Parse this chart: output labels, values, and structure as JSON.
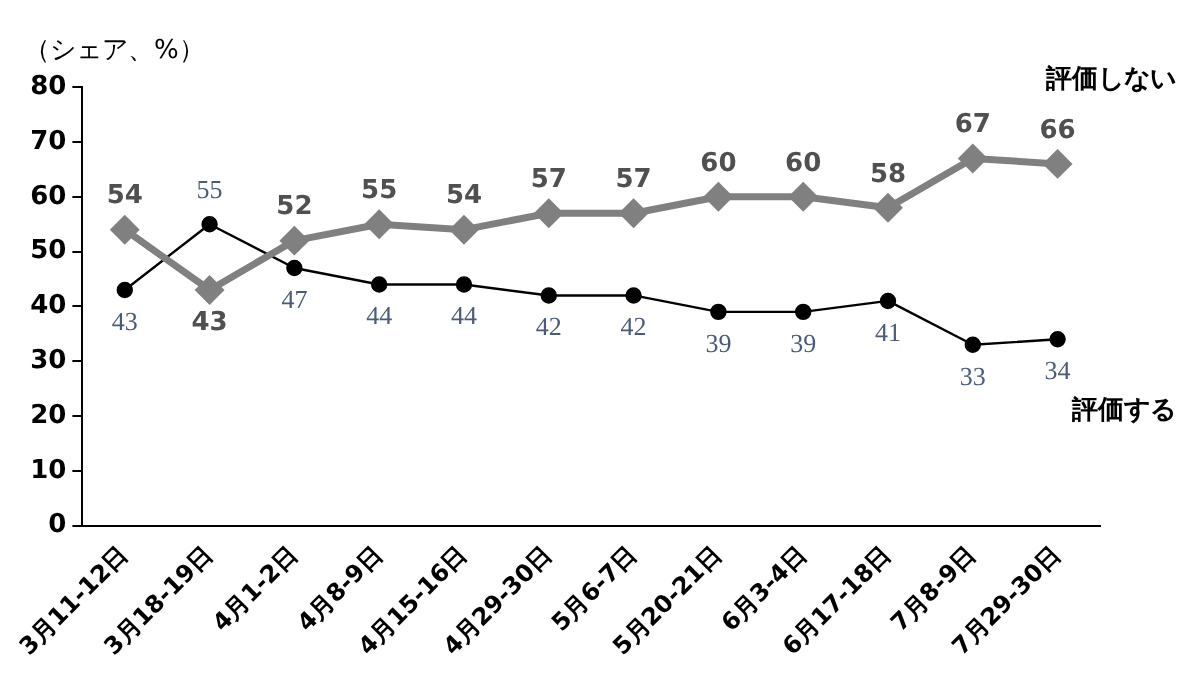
{
  "chart_data": {
    "type": "line",
    "ylabel": "（シェア、%）",
    "categories": [
      "3月11-12日",
      "3月18-19日",
      "4月1-2日",
      "4月8-9日",
      "4月15-16日",
      "4月29-30日",
      "5月6-7日",
      "5月20-21日",
      "6月3-4日",
      "6月17-18日",
      "7月8-9日",
      "7月29-30日"
    ],
    "series": [
      {
        "name": "評価しない",
        "color": "#808080",
        "marker": "diamond",
        "values": [
          54,
          43,
          52,
          55,
          54,
          57,
          57,
          60,
          60,
          58,
          67,
          66
        ]
      },
      {
        "name": "評価する",
        "color": "#000000",
        "marker": "circle",
        "values": [
          43,
          55,
          47,
          44,
          44,
          42,
          42,
          39,
          39,
          41,
          33,
          34
        ]
      }
    ],
    "ylim": [
      0,
      80
    ],
    "yticks": [
      0,
      10,
      20,
      30,
      40,
      50,
      60,
      70,
      80
    ],
    "grid": false,
    "legend": false,
    "data_labels": true
  }
}
